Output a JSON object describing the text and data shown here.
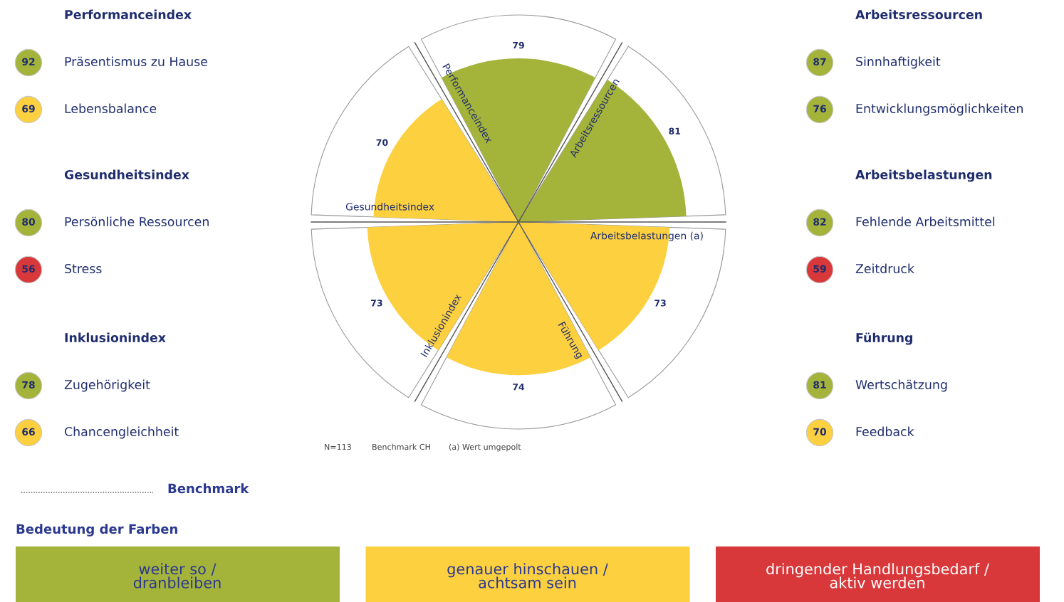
{
  "chart_data": [
    {
      "type": "other",
      "title": "Performanceindex",
      "categories": [
        "Präsentismus zu Hause",
        "Lebensbalance"
      ],
      "values": [
        92,
        69
      ],
      "data_labels": true,
      "colors": [
        "#a4b33a",
        "#fcd03f"
      ]
    },
    {
      "type": "other",
      "title": "Gesundheitsindex",
      "categories": [
        "Persönliche Ressourcen",
        "Stress"
      ],
      "values": [
        80,
        56
      ],
      "data_labels": true,
      "colors": [
        "#a4b33a",
        "#d9383a"
      ]
    },
    {
      "type": "other",
      "title": "Inklusionindex",
      "categories": [
        "Zugehörigkeit",
        "Chancengleichheit"
      ],
      "values": [
        78,
        66
      ],
      "data_labels": true,
      "colors": [
        "#a4b33a",
        "#fcd03f"
      ]
    },
    {
      "type": "other",
      "categories": [
        "Performanceindex",
        "Arbeitsressourcen",
        "Arbeitsbelastungen (a)",
        "Führung",
        "Inklusionindex",
        "Gesundheitsindex"
      ],
      "values": [
        79,
        81,
        73,
        74,
        73,
        70
      ],
      "data_labels": true,
      "colors": [
        "#a4b33a",
        "#a4b33a",
        "#fcd03f",
        "#fcd03f",
        "#fcd03f",
        "#fcd03f"
      ],
      "annotations": [
        "N=113",
        "Benchmark CH",
        "(a) Wert umgepolt"
      ]
    },
    {
      "type": "other",
      "title": "Arbeitsressourcen",
      "categories": [
        "Sinnhaftigkeit",
        "Entwicklungsmöglichkeiten"
      ],
      "values": [
        87,
        76
      ],
      "data_labels": true,
      "colors": [
        "#a4b33a",
        "#a4b33a"
      ]
    },
    {
      "type": "other",
      "title": "Arbeitsbelastungen",
      "categories": [
        "Fehlende Arbeitsmittel",
        "Zeitdruck"
      ],
      "values": [
        82,
        59
      ],
      "data_labels": true,
      "colors": [
        "#a4b33a",
        "#d9383a"
      ]
    },
    {
      "type": "other",
      "title": "Führung",
      "categories": [
        "Wertschätzung",
        "Feedback"
      ],
      "values": [
        81,
        70
      ],
      "data_labels": true,
      "colors": [
        "#a4b33a",
        "#fcd03f"
      ]
    },
    {
      "type": "other",
      "title": "Bedeutung der Farben",
      "categories": [
        "weiter so /\ndranbleiben",
        "genauer hinschauen /\nachtsam sein",
        "dringender Handlungsbedarf /\naktiv werden"
      ],
      "colors": [
        "#a4b33a",
        "#fcd03f",
        "#d9383a"
      ],
      "annotations": [
        "Benchmark"
      ]
    }
  ]
}
